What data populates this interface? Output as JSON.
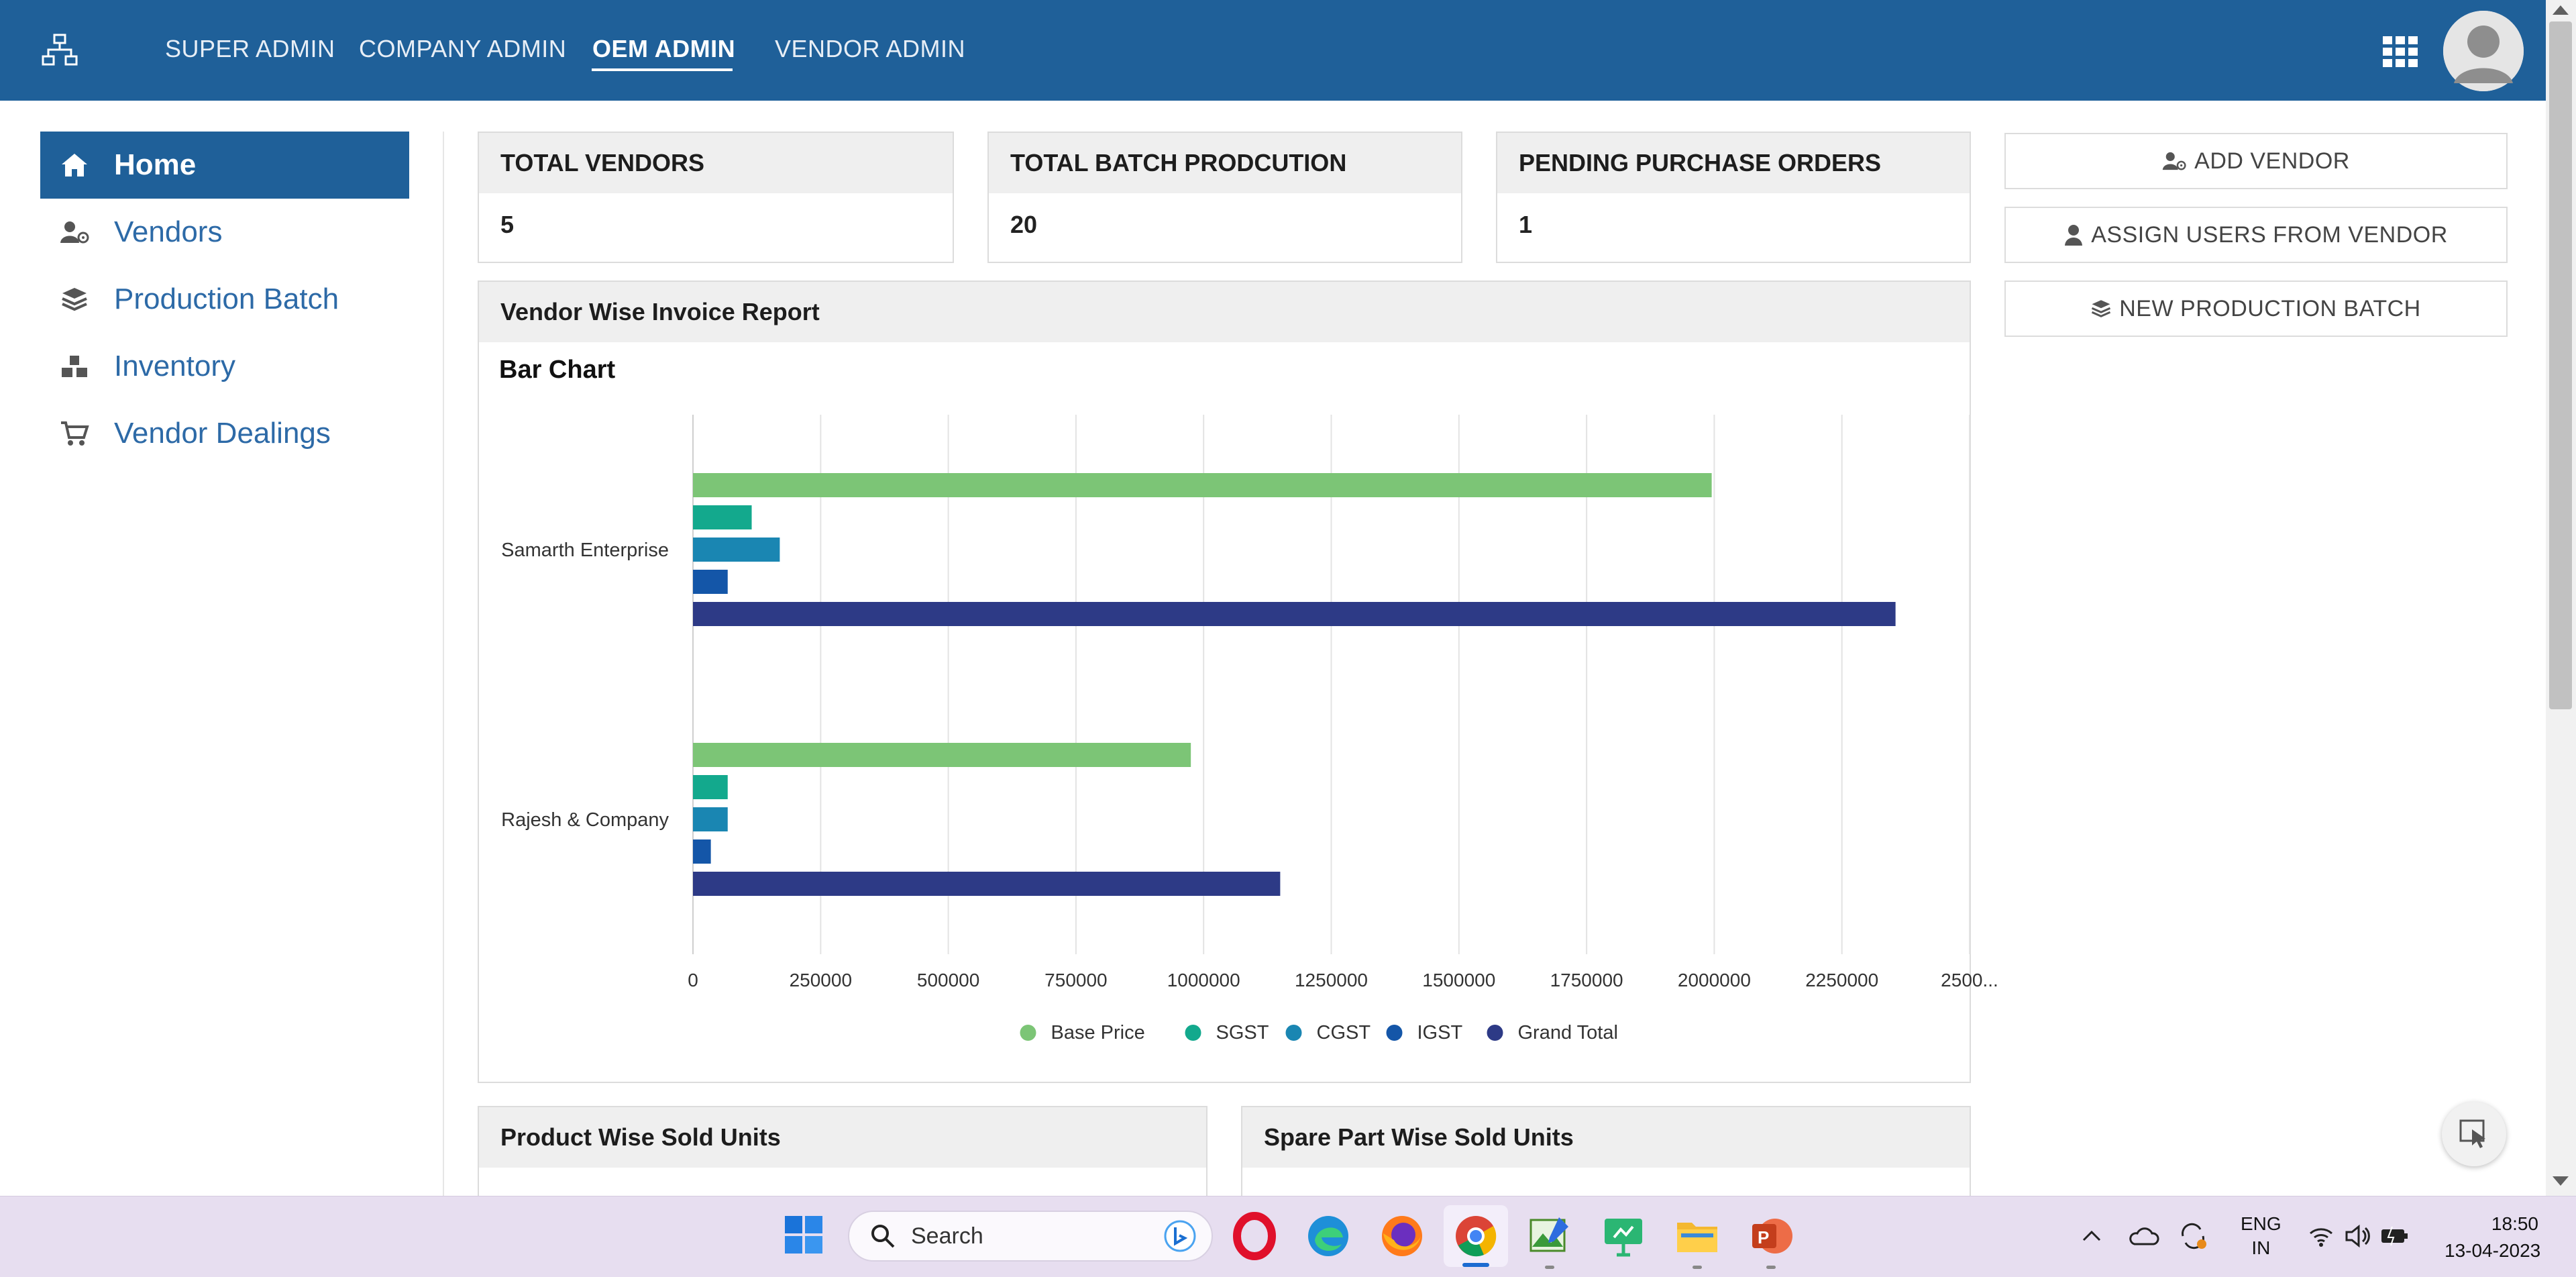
{
  "nav": {
    "items": [
      {
        "label": "SUPER ADMIN"
      },
      {
        "label": "COMPANY ADMIN"
      },
      {
        "label": "OEM ADMIN"
      },
      {
        "label": "VENDOR ADMIN"
      }
    ],
    "active_index": 2
  },
  "sidebar": {
    "items": [
      {
        "label": "Home",
        "icon": "home-icon"
      },
      {
        "label": "Vendors",
        "icon": "vendors-icon"
      },
      {
        "label": "Production Batch",
        "icon": "layers-icon"
      },
      {
        "label": "Inventory",
        "icon": "boxes-icon"
      },
      {
        "label": "Vendor Dealings",
        "icon": "cart-icon"
      }
    ],
    "active_index": 0
  },
  "stats": [
    {
      "label": "TOTAL VENDORS",
      "value": "5"
    },
    {
      "label": "TOTAL BATCH PRODCUTION",
      "value": "20"
    },
    {
      "label": "PENDING PURCHASE ORDERS",
      "value": "1"
    }
  ],
  "actions": [
    {
      "label": "ADD VENDOR",
      "icon": "add-user-icon"
    },
    {
      "label": "ASSIGN USERS FROM VENDOR",
      "icon": "user-icon"
    },
    {
      "label": "NEW PRODUCTION BATCH",
      "icon": "layers-icon"
    }
  ],
  "report": {
    "title": "Vendor Wise Invoice Report",
    "subtitle": "Bar Chart"
  },
  "chart_data": {
    "type": "bar",
    "orientation": "horizontal",
    "categories": [
      "Samarth Enterprise",
      "Rajesh & Company"
    ],
    "series": [
      {
        "name": "Base Price",
        "color": "#7cc576",
        "values": [
          1995000,
          975000
        ]
      },
      {
        "name": "SGST",
        "color": "#13a98d",
        "values": [
          115000,
          68000
        ]
      },
      {
        "name": "CGST",
        "color": "#1a86b2",
        "values": [
          170000,
          68000
        ]
      },
      {
        "name": "IGST",
        "color": "#1456a8",
        "values": [
          68000,
          35000
        ]
      },
      {
        "name": "Grand Total",
        "color": "#2d3a86",
        "values": [
          2355000,
          1150000
        ]
      }
    ],
    "x_ticks": [
      "0",
      "250000",
      "500000",
      "750000",
      "1000000",
      "1250000",
      "1500000",
      "1750000",
      "2000000",
      "2250000",
      "2500..."
    ],
    "xlim": [
      0,
      2500000
    ],
    "grid": true,
    "legend": "bottom"
  },
  "bottom_panels": [
    {
      "title": "Product Wise Sold Units"
    },
    {
      "title": "Spare Part Wise Sold Units"
    }
  ],
  "taskbar": {
    "search_placeholder": "Search",
    "lang_line1": "ENG",
    "lang_line2": "IN",
    "time": "18:50",
    "date": "13-04-2023"
  }
}
